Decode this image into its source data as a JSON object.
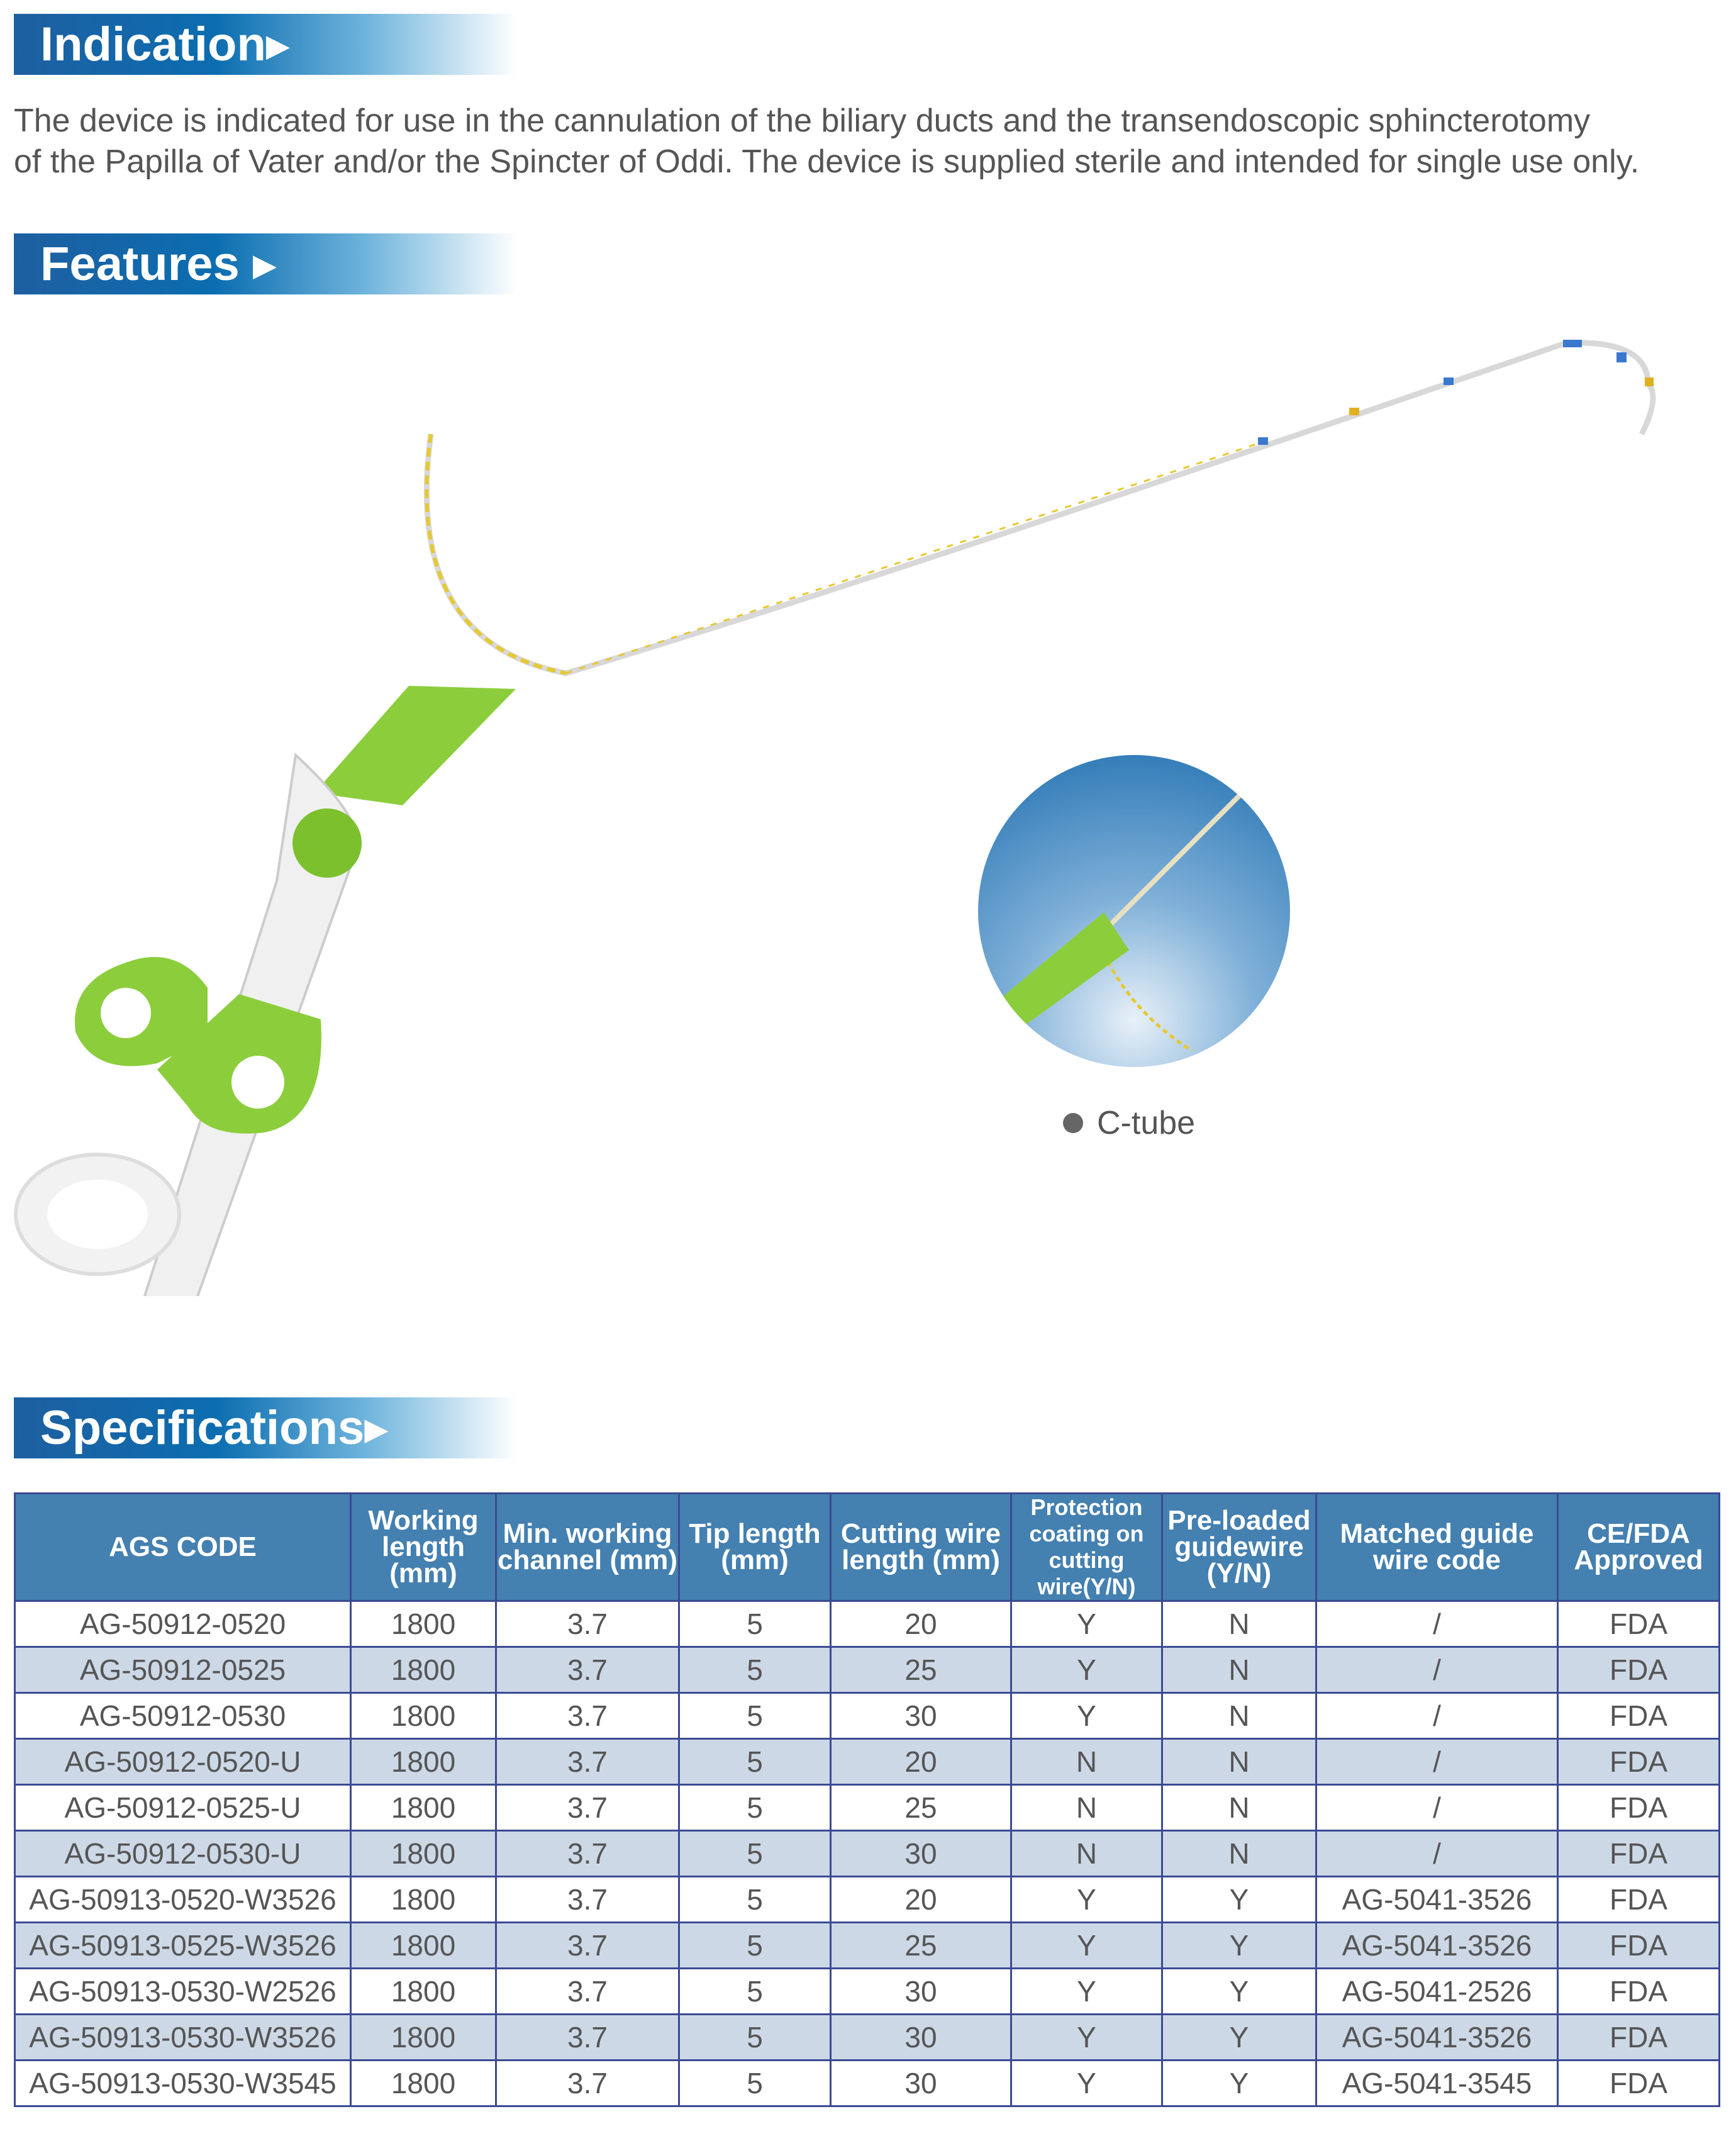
{
  "sections": {
    "indication": "Indication",
    "features": "Features",
    "specifications": "Specifications"
  },
  "indication_text": [
    "The device is indicated for use in the cannulation of the biliary ducts and the transendoscopic sphincterotomy",
    "of the Papilla of Vater and/or the Spincter of Oddi. The device is supplied sterile and intended for single use only."
  ],
  "features": {
    "inset_label": "C-tube"
  },
  "colors": {
    "banner": "#0b6db0",
    "header": "#4480b0",
    "border": "#3b4a92",
    "alt_row": "#cdd8e7",
    "device_green": "#8ccd3c"
  },
  "table": {
    "headers": [
      "AGS CODE",
      "Working length (mm)",
      "Min. working channel (mm)",
      "Tip length (mm)",
      "Cutting wire length (mm)",
      "Protection coating on cutting wire(Y/N)",
      "Pre-loaded guidewire (Y/N)",
      "Matched guide wire code",
      "CE/FDA Approved"
    ],
    "rows": [
      [
        "AG-50912-0520",
        "1800",
        "3.7",
        "5",
        "20",
        "Y",
        "N",
        "/",
        "FDA"
      ],
      [
        "AG-50912-0525",
        "1800",
        "3.7",
        "5",
        "25",
        "Y",
        "N",
        "/",
        "FDA"
      ],
      [
        "AG-50912-0530",
        "1800",
        "3.7",
        "5",
        "30",
        "Y",
        "N",
        "/",
        "FDA"
      ],
      [
        "AG-50912-0520-U",
        "1800",
        "3.7",
        "5",
        "20",
        "N",
        "N",
        "/",
        "FDA"
      ],
      [
        "AG-50912-0525-U",
        "1800",
        "3.7",
        "5",
        "25",
        "N",
        "N",
        "/",
        "FDA"
      ],
      [
        "AG-50912-0530-U",
        "1800",
        "3.7",
        "5",
        "30",
        "N",
        "N",
        "/",
        "FDA"
      ],
      [
        "AG-50913-0520-W3526",
        "1800",
        "3.7",
        "5",
        "20",
        "Y",
        "Y",
        "AG-5041-3526",
        "FDA"
      ],
      [
        "AG-50913-0525-W3526",
        "1800",
        "3.7",
        "5",
        "25",
        "Y",
        "Y",
        "AG-5041-3526",
        "FDA"
      ],
      [
        "AG-50913-0530-W2526",
        "1800",
        "3.7",
        "5",
        "30",
        "Y",
        "Y",
        "AG-5041-2526",
        "FDA"
      ],
      [
        "AG-50913-0530-W3526",
        "1800",
        "3.7",
        "5",
        "30",
        "Y",
        "Y",
        "AG-5041-3526",
        "FDA"
      ],
      [
        "AG-50913-0530-W3545",
        "1800",
        "3.7",
        "5",
        "30",
        "Y",
        "Y",
        "AG-5041-3545",
        "FDA"
      ]
    ]
  }
}
